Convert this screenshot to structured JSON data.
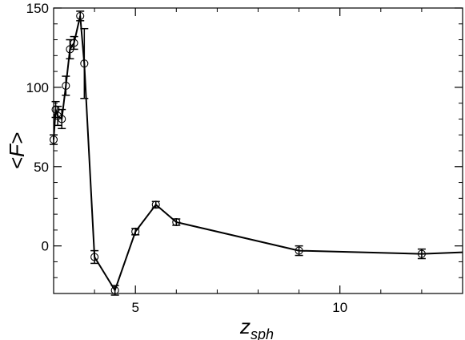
{
  "chart_data": {
    "type": "line",
    "title": "",
    "xlabel": {
      "main": "z",
      "sub": "sph"
    },
    "ylabel": "<F>",
    "xlim": [
      3.0,
      13.0
    ],
    "ylim": [
      -30,
      150
    ],
    "xticks": [
      5,
      10
    ],
    "yticks": [
      0,
      50,
      100,
      150
    ],
    "grid": false,
    "legend": "none",
    "marker": "open-circle",
    "error_bars": true,
    "color": "#000000",
    "series": [
      {
        "points": [
          {
            "x": 3.0,
            "y": 67,
            "err": 3
          },
          {
            "x": 3.05,
            "y": 86,
            "err": 5
          },
          {
            "x": 3.1,
            "y": 82,
            "err": 6
          },
          {
            "x": 3.2,
            "y": 80,
            "err": 6
          },
          {
            "x": 3.3,
            "y": 101,
            "err": 6
          },
          {
            "x": 3.4,
            "y": 124,
            "err": 6
          },
          {
            "x": 3.5,
            "y": 128,
            "err": 4
          },
          {
            "x": 3.65,
            "y": 145,
            "err": 3
          },
          {
            "x": 3.75,
            "y": 115,
            "err": 22
          },
          {
            "x": 4.0,
            "y": -7,
            "err": 4
          },
          {
            "x": 4.5,
            "y": -28,
            "err": 3
          },
          {
            "x": 5.0,
            "y": 9,
            "err": 2
          },
          {
            "x": 5.5,
            "y": 26,
            "err": 2
          },
          {
            "x": 6.0,
            "y": 15,
            "err": 2
          },
          {
            "x": 9.0,
            "y": -3,
            "err": 3
          },
          {
            "x": 12.0,
            "y": -5,
            "err": 3
          },
          {
            "x": 13.0,
            "y": -4,
            "err": 0
          }
        ],
        "marked": [
          true,
          true,
          true,
          true,
          true,
          true,
          true,
          true,
          true,
          true,
          true,
          true,
          true,
          true,
          true,
          true,
          false
        ]
      }
    ]
  }
}
